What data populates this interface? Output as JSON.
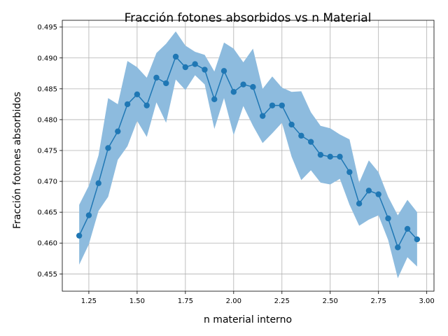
{
  "chart_data": {
    "type": "line",
    "title": "Fracción fotones absorbidos vs n Material",
    "xlabel": "n material interno",
    "ylabel": "Fracción fotones absorbidos",
    "xlim": [
      1.1125,
      3.0375
    ],
    "ylim": [
      0.4522,
      0.4961
    ],
    "grid": true,
    "x_ticks": [
      "1.25",
      "1.50",
      "1.75",
      "2.00",
      "2.25",
      "2.50",
      "2.75",
      "3.00"
    ],
    "y_ticks": [
      "0.455",
      "0.460",
      "0.465",
      "0.470",
      "0.475",
      "0.480",
      "0.485",
      "0.490",
      "0.495"
    ],
    "line_color": "#1f77b4",
    "band_color": "#8dbbde",
    "series": [
      {
        "x": [
          1.2,
          1.25,
          1.3,
          1.35,
          1.4,
          1.45,
          1.5,
          1.55,
          1.6,
          1.65,
          1.7,
          1.75,
          1.8,
          1.85,
          1.9,
          1.95,
          2.0,
          2.05,
          2.1,
          2.15,
          2.2,
          2.25,
          2.3,
          2.35,
          2.4,
          2.45,
          2.5,
          2.55,
          2.6,
          2.65,
          2.7,
          2.75,
          2.8,
          2.85,
          2.9,
          2.95
        ],
        "y": [
          0.4612,
          0.4645,
          0.4697,
          0.4754,
          0.4781,
          0.4825,
          0.4841,
          0.4823,
          0.4868,
          0.4859,
          0.4902,
          0.4885,
          0.489,
          0.4881,
          0.4833,
          0.4879,
          0.4845,
          0.4857,
          0.4853,
          0.4806,
          0.4823,
          0.4823,
          0.4792,
          0.4774,
          0.4764,
          0.4743,
          0.474,
          0.474,
          0.4715,
          0.4664,
          0.4685,
          0.4679,
          0.464,
          0.4593,
          0.4623,
          0.4606
        ],
        "upper": [
          0.4662,
          0.4693,
          0.4742,
          0.4835,
          0.4825,
          0.4895,
          0.4885,
          0.4868,
          0.4908,
          0.4923,
          0.4943,
          0.492,
          0.491,
          0.4905,
          0.4878,
          0.4925,
          0.4915,
          0.4893,
          0.4915,
          0.485,
          0.487,
          0.4852,
          0.4845,
          0.4846,
          0.4812,
          0.479,
          0.4786,
          0.4776,
          0.4768,
          0.4698,
          0.4734,
          0.4715,
          0.4675,
          0.4645,
          0.467,
          0.465
        ],
        "lower": [
          0.4565,
          0.4598,
          0.4652,
          0.4675,
          0.4735,
          0.4757,
          0.4798,
          0.4772,
          0.4828,
          0.4795,
          0.4865,
          0.4848,
          0.4872,
          0.4857,
          0.4785,
          0.4835,
          0.4775,
          0.4822,
          0.479,
          0.4762,
          0.4778,
          0.4795,
          0.474,
          0.4702,
          0.4718,
          0.4698,
          0.4695,
          0.4704,
          0.4662,
          0.4628,
          0.4638,
          0.4645,
          0.4605,
          0.4543,
          0.4577,
          0.4562
        ]
      }
    ]
  }
}
